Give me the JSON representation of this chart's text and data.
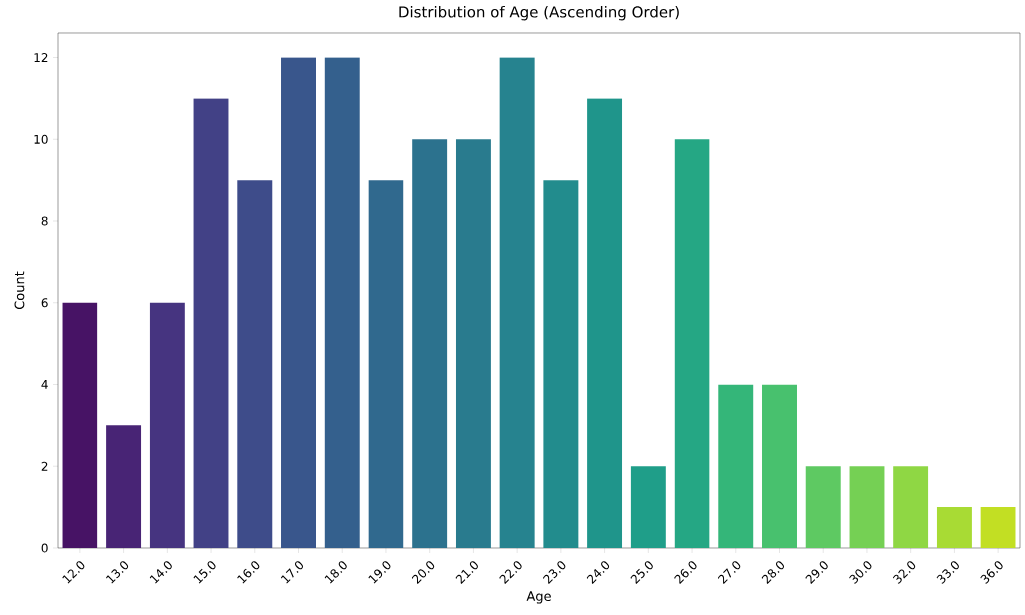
{
  "chart_data": {
    "type": "bar",
    "title": "Distribution of Age (Ascending Order)",
    "xlabel": "Age",
    "ylabel": "Count",
    "categories": [
      "12.0",
      "13.0",
      "14.0",
      "15.0",
      "16.0",
      "17.0",
      "18.0",
      "19.0",
      "20.0",
      "21.0",
      "22.0",
      "23.0",
      "24.0",
      "25.0",
      "26.0",
      "27.0",
      "28.0",
      "29.0",
      "30.0",
      "32.0",
      "33.0",
      "36.0"
    ],
    "values": [
      6,
      3,
      6,
      11,
      9,
      12,
      12,
      9,
      10,
      10,
      12,
      9,
      11,
      2,
      10,
      4,
      4,
      2,
      2,
      2,
      1,
      1
    ],
    "colors": [
      "#471365",
      "#482475",
      "#463480",
      "#424186",
      "#3e4c8a",
      "#39568c",
      "#34608d",
      "#30698e",
      "#2c728e",
      "#297b8e",
      "#26838f",
      "#228c8d",
      "#1f958b",
      "#1f9e89",
      "#25a784",
      "#34b679",
      "#48c16e",
      "#5ec962",
      "#75d054",
      "#8fd744",
      "#a8db34",
      "#c2df23"
    ],
    "ylim": [
      0,
      12.6
    ],
    "yticks": [
      0,
      2,
      4,
      6,
      8,
      10,
      12
    ],
    "grid": false
  }
}
